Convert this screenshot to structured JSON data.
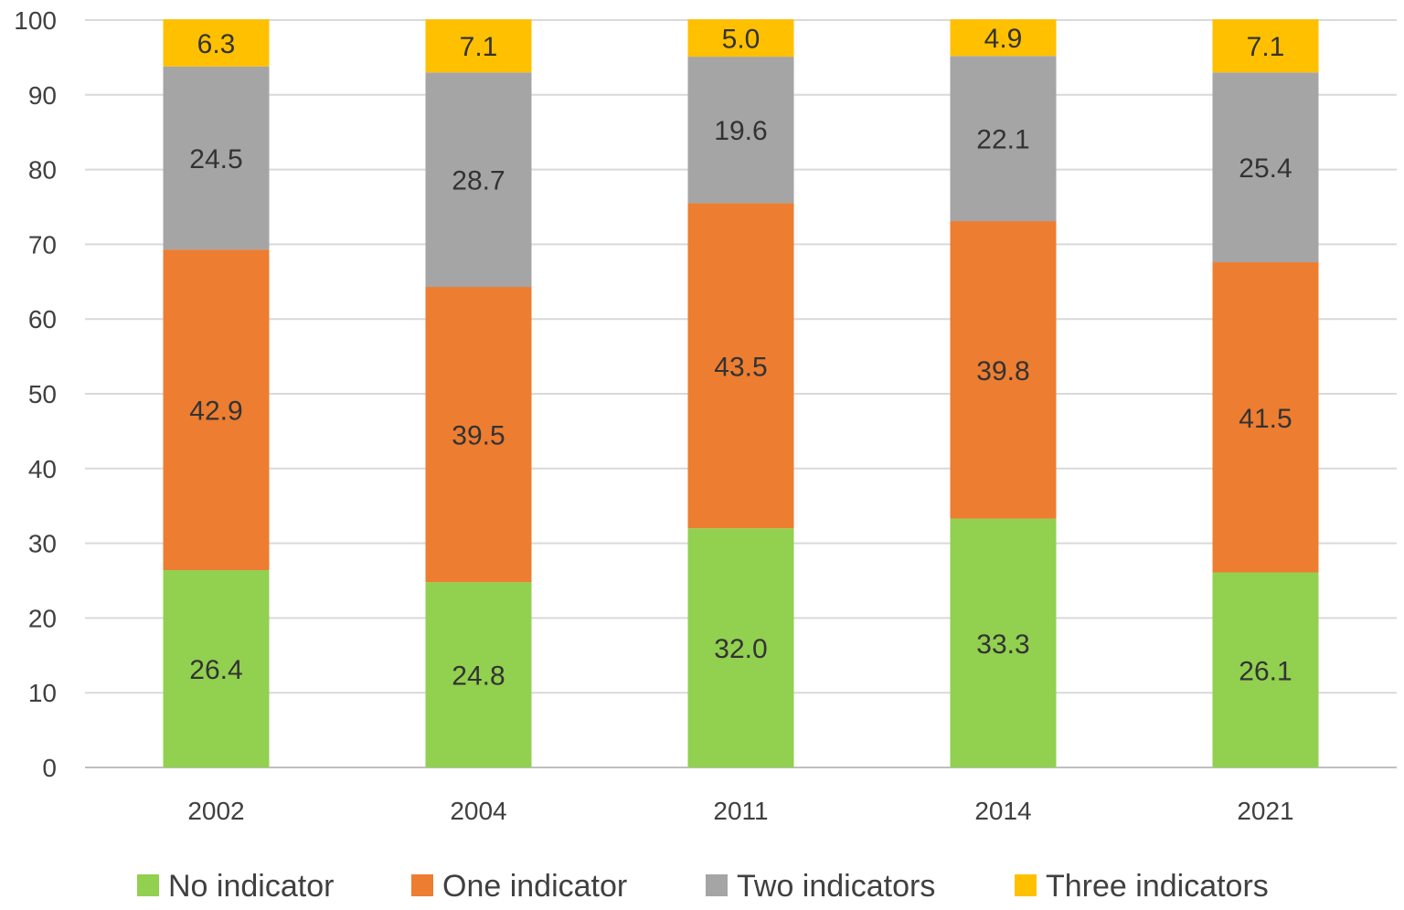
{
  "chart_data": {
    "type": "bar",
    "stacked": true,
    "title": "",
    "xlabel": "",
    "ylabel": "",
    "ylim": [
      0,
      100
    ],
    "yticks": [
      0,
      10,
      20,
      30,
      40,
      50,
      60,
      70,
      80,
      90,
      100
    ],
    "grid": true,
    "legend_position": "bottom",
    "categories": [
      "2002",
      "2004",
      "2011",
      "2014",
      "2021"
    ],
    "series": [
      {
        "name": "No indicator",
        "color": "#92d050",
        "values": [
          26.4,
          24.8,
          32.0,
          33.3,
          26.1
        ],
        "labels": [
          "26.4",
          "24.8",
          "32.0",
          "33.3",
          "26.1"
        ]
      },
      {
        "name": "One indicator",
        "color": "#ed7d31",
        "values": [
          42.9,
          39.5,
          43.5,
          39.8,
          41.5
        ],
        "labels": [
          "42.9",
          "39.5",
          "43.5",
          "39.8",
          "41.5"
        ]
      },
      {
        "name": "Two indicators",
        "color": "#a5a5a5",
        "values": [
          24.5,
          28.7,
          19.6,
          22.1,
          25.4
        ],
        "labels": [
          "24.5",
          "28.7",
          "19.6",
          "22.1",
          "25.4"
        ]
      },
      {
        "name": "Three indicators",
        "color": "#ffc000",
        "values": [
          6.3,
          7.1,
          5.0,
          4.9,
          7.1
        ],
        "labels": [
          "6.3",
          "7.1",
          "5.0",
          "4.9",
          "7.1"
        ]
      }
    ]
  }
}
